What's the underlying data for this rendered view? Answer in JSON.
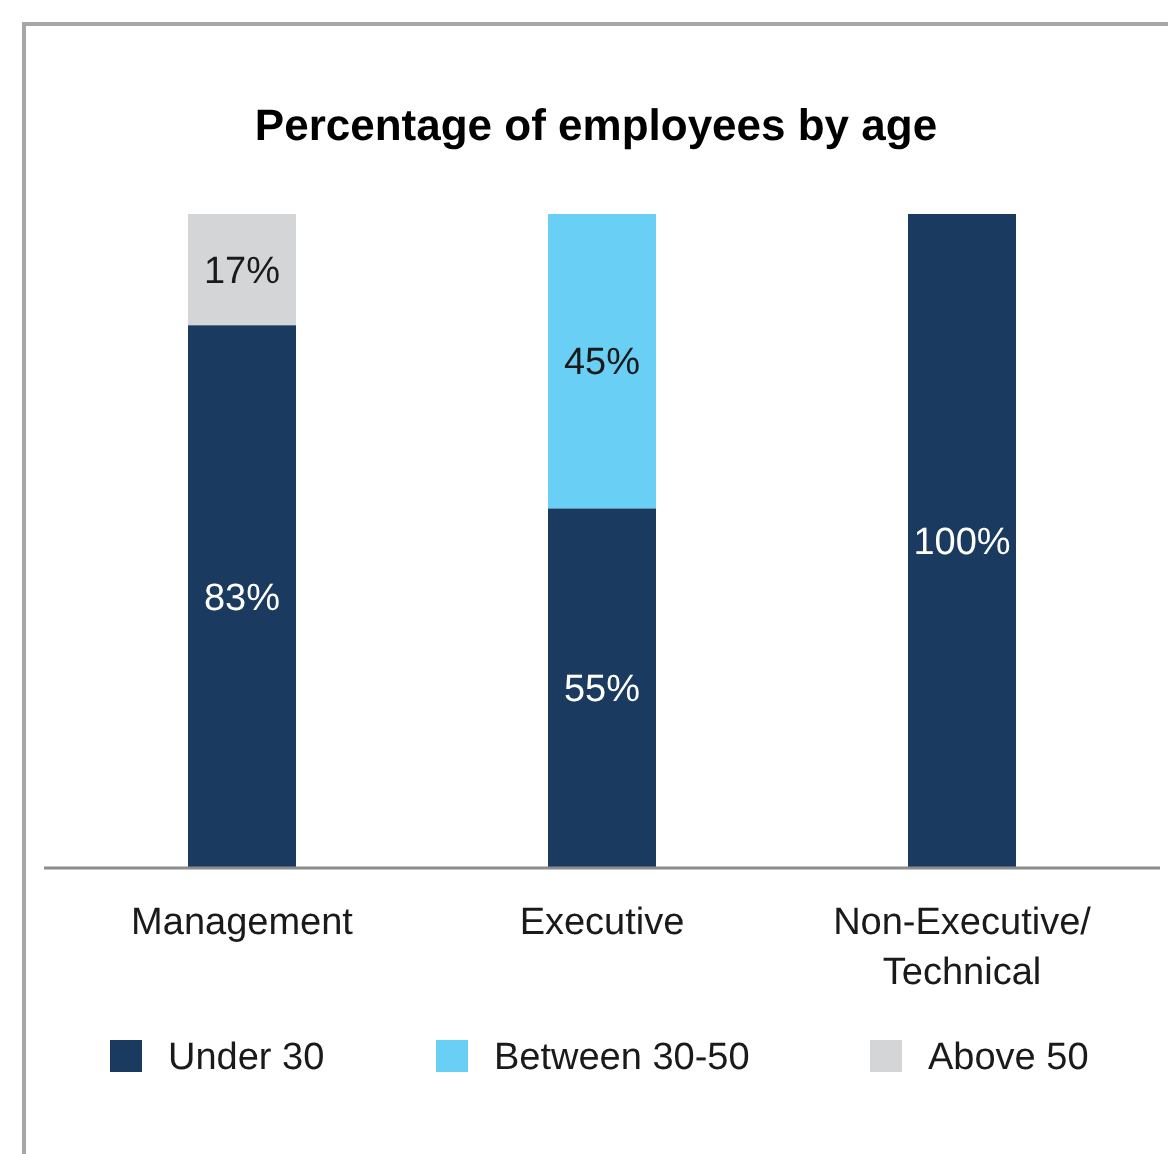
{
  "chart_data": {
    "type": "bar",
    "title": "Percentage of employees by age",
    "stacked": true,
    "categories": [
      "Management",
      "Executive",
      "Non-Executive/ Technical"
    ],
    "series": [
      {
        "name": "Under 30",
        "color": "#1b3a60",
        "values": [
          83,
          55,
          100
        ],
        "value_labels": [
          "83%",
          "55%",
          "100%"
        ]
      },
      {
        "name": "Between 30-50",
        "color": "#6acff5",
        "values": [
          null,
          45,
          null
        ],
        "value_labels": [
          null,
          "45%",
          null
        ]
      },
      {
        "name": "Above 50",
        "color": "#d4d5d7",
        "values": [
          17,
          null,
          null
        ],
        "value_labels": [
          "17%",
          null,
          null
        ]
      }
    ],
    "legend": "bottom"
  }
}
